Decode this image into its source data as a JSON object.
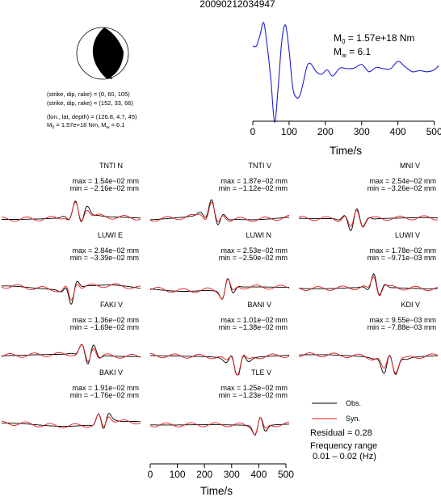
{
  "title": "20090212034947",
  "source_info": {
    "plane1": "(strike, dip, rake) = (0, 60, 105)",
    "plane2": "(strike, dip, rake) = (152, 33, 66)",
    "location": "(lon., lat, depth) = (126.8, 4.7, 45)",
    "mag_prefix": "M",
    "mag_sub0": "0",
    "mag_mid": " = 1.57e+18 Nm, M",
    "mag_subw": "w",
    "mag_end": " = 6.1"
  },
  "stf_labels": {
    "m0_symbol": "M",
    "m0_sub": "0",
    "m0_value": " = 1.57e+18 Nm",
    "mw_symbol": "M",
    "mw_sub": "w",
    "mw_value": " = 6.1"
  },
  "legend": {
    "obs": "Obs.",
    "syn": "Syn.",
    "residual": "Residual = 0.28",
    "freq1": "Frequency range",
    "freq2": "0.01 – 0.02 (Hz)"
  },
  "colors": {
    "observed": "#000000",
    "synthetic": "#e41a1c",
    "stf": "#1f1fd6"
  },
  "chart_data": [
    {
      "type": "line",
      "name": "source-time-function",
      "xlabel": "Time/s",
      "xlim": [
        0,
        512
      ],
      "xticks": [
        0,
        100,
        200,
        300,
        400,
        500
      ],
      "x": [
        0,
        10,
        20,
        30,
        40,
        50,
        60,
        70,
        80,
        90,
        100,
        110,
        120,
        130,
        140,
        150,
        160,
        175,
        190,
        205,
        220,
        240,
        260,
        280,
        300,
        320,
        340,
        360,
        380,
        400,
        420,
        440,
        460,
        480,
        500,
        512
      ],
      "values": [
        0.62,
        0.62,
        0.8,
        1.0,
        0.6,
        0.05,
        -0.62,
        -0.05,
        0.7,
        0.96,
        0.55,
        -0.05,
        -0.22,
        -0.18,
        0.05,
        0.3,
        0.33,
        0.2,
        0.16,
        0.23,
        0.13,
        0.26,
        0.25,
        0.26,
        0.32,
        0.2,
        0.27,
        0.25,
        0.25,
        0.37,
        0.28,
        0.2,
        0.22,
        0.2,
        0.23,
        0.3
      ]
    },
    {
      "type": "line",
      "name": "waveform-fits",
      "xlabel": "Time/s",
      "xlim": [
        0,
        512
      ],
      "xticks": [
        0,
        100,
        200,
        300,
        400,
        500
      ],
      "series": [
        {
          "name": "Observed",
          "role": "obs"
        },
        {
          "name": "Synthetic",
          "role": "syn"
        }
      ],
      "stations": [
        {
          "name": "TNTI N",
          "max": "max = 1.54e−02 mm",
          "min": "min = −2.16e−02 mm",
          "peak": 0.55,
          "seed": 11
        },
        {
          "name": "TNTI V",
          "max": "max = 1.87e−02 mm",
          "min": "min = −1.12e−02 mm",
          "peak": 0.45,
          "seed": 23
        },
        {
          "name": "MNI V",
          "max": "max = 2.54e−02 mm",
          "min": "min = −3.26e−02 mm",
          "peak": 0.4,
          "seed": 37
        },
        {
          "name": "LUWI E",
          "max": "max = 2.84e−02 mm",
          "min": "min = −3.39e−02 mm",
          "peak": 0.5,
          "seed": 41
        },
        {
          "name": "LUWI N",
          "max": "max = 2.53e−02 mm",
          "min": "min = −2.50e−02 mm",
          "peak": 0.55,
          "seed": 53
        },
        {
          "name": "LUWI V",
          "max": "max = 1.78e−02 mm",
          "min": "min = −9.71e−03 mm",
          "peak": 0.55,
          "seed": 67
        },
        {
          "name": "FAKI V",
          "max": "max = 1.36e−02 mm",
          "min": "min = −1.69e−02 mm",
          "peak": 0.62,
          "seed": 71
        },
        {
          "name": "BANI V",
          "max": "max = 1.01e−02 mm",
          "min": "min = −1.38e−02 mm",
          "peak": 0.62,
          "seed": 83
        },
        {
          "name": "KDI V",
          "max": "max = 9.55e−03 mm",
          "min": "min = −7.88e−03 mm",
          "peak": 0.65,
          "seed": 97
        },
        {
          "name": "BAKI V",
          "max": "max = 1.91e−02 mm",
          "min": "min = −1.76e−02 mm",
          "peak": 0.72,
          "seed": 101
        },
        {
          "name": "TLE V",
          "max": "max = 1.25e−02 mm",
          "min": "min = −1.23e−02 mm",
          "peak": 0.78,
          "seed": 113
        }
      ]
    }
  ]
}
